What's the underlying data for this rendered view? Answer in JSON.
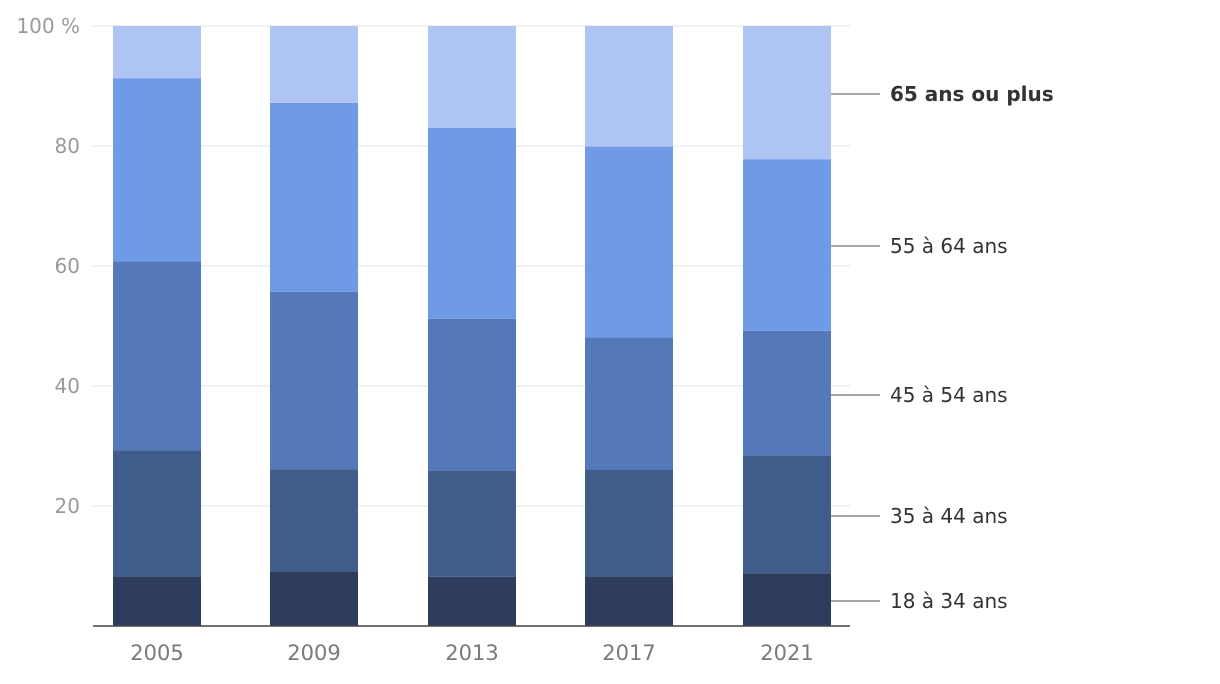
{
  "chart_data": {
    "type": "bar",
    "stacked": true,
    "categories": [
      "2005",
      "2009",
      "2013",
      "2017",
      "2021"
    ],
    "series": [
      {
        "name": "18 à 34 ans",
        "color": "#2e3d5e",
        "values": [
          8.3,
          9.0,
          8.2,
          8.3,
          8.8
        ]
      },
      {
        "name": "35 à 44 ans",
        "color": "#405c8a",
        "values": [
          21.0,
          17.1,
          17.7,
          17.7,
          19.6
        ]
      },
      {
        "name": "45 à 54 ans",
        "color": "#5579b8",
        "values": [
          31.5,
          29.6,
          25.3,
          22.1,
          20.8
        ]
      },
      {
        "name": "55 à 64 ans",
        "color": "#6f9ae6",
        "values": [
          30.5,
          31.5,
          31.8,
          31.8,
          28.6
        ]
      },
      {
        "name": "65 ans ou plus",
        "color": "#aec4f2",
        "values": [
          8.7,
          12.8,
          17.0,
          20.1,
          22.2
        ]
      }
    ],
    "highlighted_series": "65 ans ou plus",
    "ylim": [
      0,
      100
    ],
    "yticks": [
      "100 %",
      "80",
      "60",
      "40",
      "20"
    ],
    "xlabel": "",
    "ylabel": "",
    "grid": true,
    "legend_placement": "right, labels beside last bar"
  }
}
